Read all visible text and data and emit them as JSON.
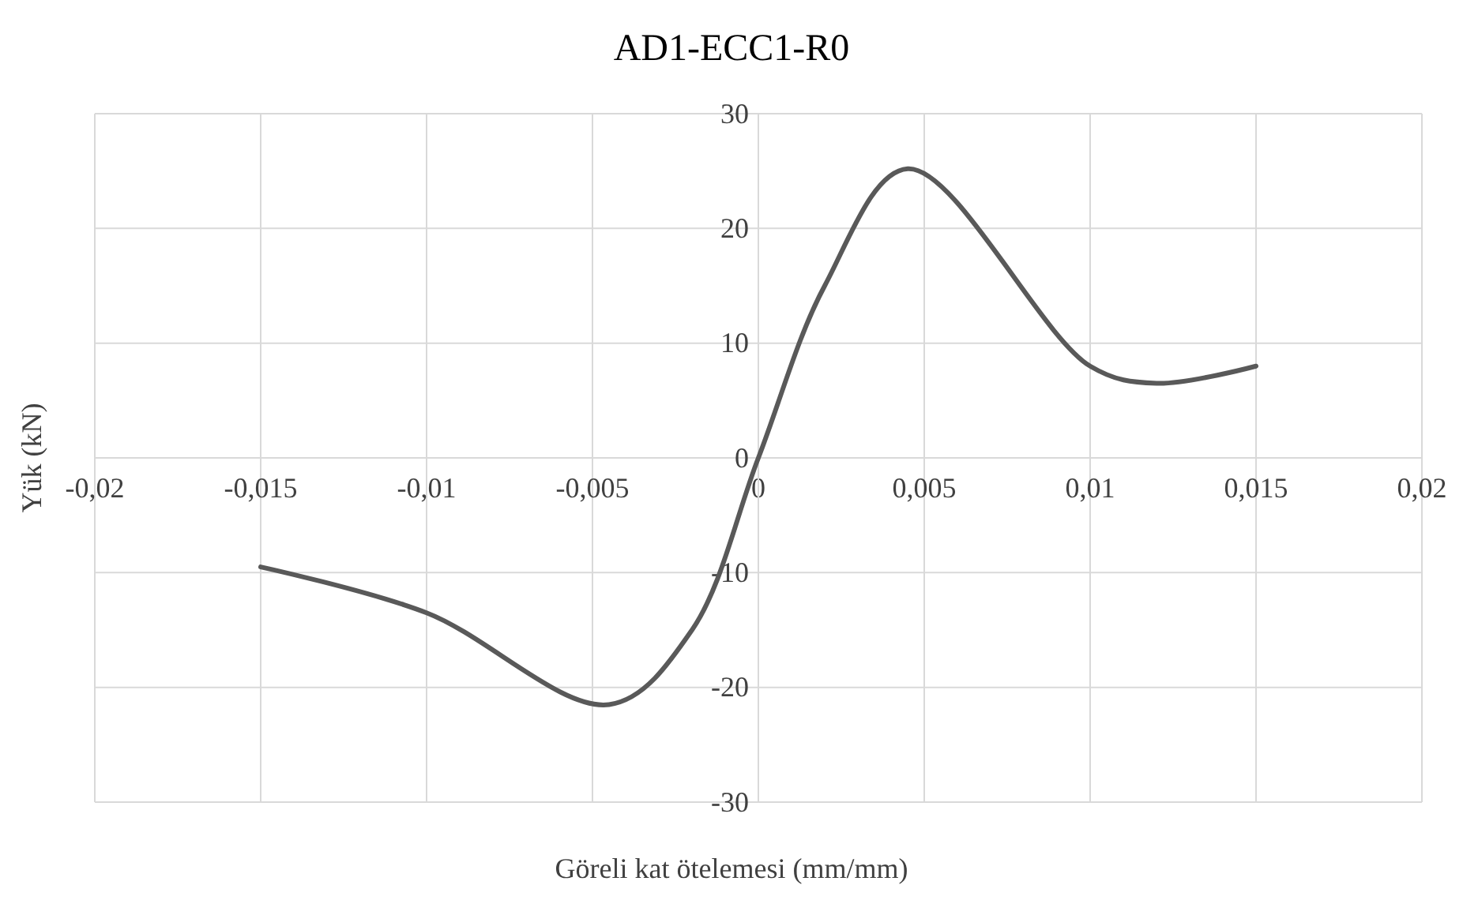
{
  "chart_data": {
    "type": "line",
    "title": "AD1-ECC1-R0",
    "xlabel": "Göreli kat ötelemesi (mm/mm)",
    "ylabel": "Yük (kN)",
    "x": [
      -0.015,
      -0.01,
      -0.0045,
      -0.002,
      0,
      0.002,
      0.0045,
      0.01,
      0.012,
      0.015
    ],
    "series": [
      {
        "color": "#595959",
        "values": [
          -9.5,
          -13.5,
          -21.5,
          -15,
          0,
          15,
          25.2,
          8,
          6.5,
          8
        ]
      }
    ],
    "xlim": [
      -0.02,
      0.02
    ],
    "ylim": [
      -30,
      30
    ],
    "xticks": [
      {
        "value": -0.02,
        "label": "-0,02"
      },
      {
        "value": -0.015,
        "label": "-0,015"
      },
      {
        "value": -0.01,
        "label": "-0,01"
      },
      {
        "value": -0.005,
        "label": "-0,005"
      },
      0,
      {
        "value": 0.005,
        "label": "0,005"
      },
      {
        "value": 0.01,
        "label": "0,01"
      },
      {
        "value": 0.015,
        "label": "0,015"
      },
      {
        "value": 0.02,
        "label": "0,02"
      }
    ],
    "yticks": [
      -30,
      -20,
      -10,
      0,
      10,
      20,
      30
    ],
    "grid": true,
    "marker": "none",
    "line_style": "solid"
  }
}
